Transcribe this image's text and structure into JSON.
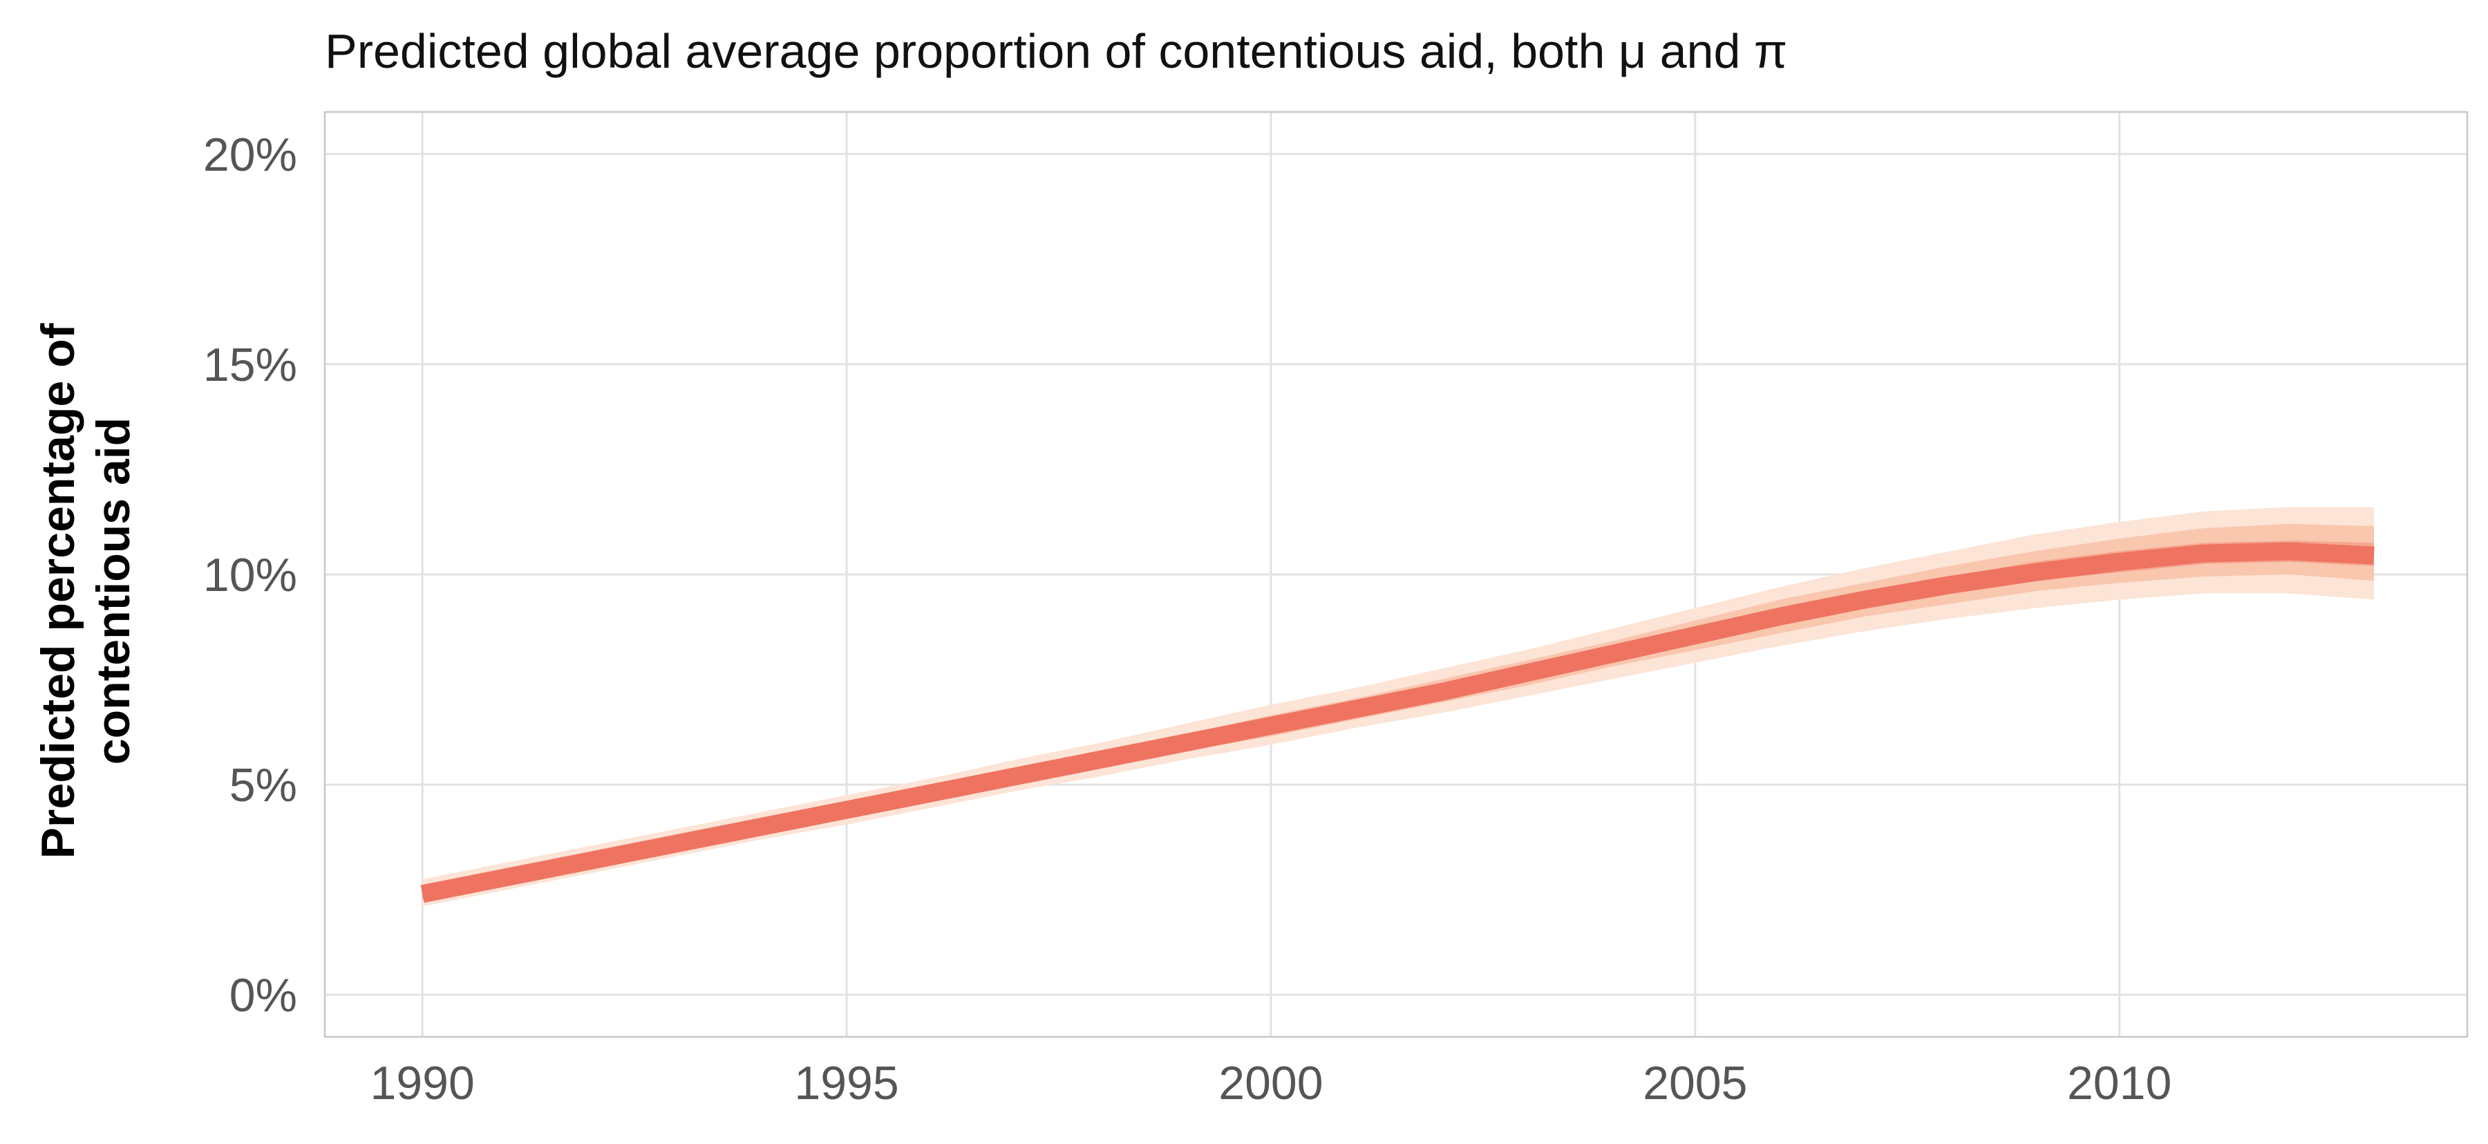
{
  "chart_data": {
    "type": "area",
    "title": "Predicted global average proportion of contentious aid, both μ and π",
    "xlabel": "",
    "ylabel_lines": [
      "Predicted percentage of",
      "contentious aid"
    ],
    "xlim": [
      1988.85,
      2014.1
    ],
    "ylim": [
      -1,
      21
    ],
    "x_ticks": [
      {
        "value": 1990,
        "label": "1990"
      },
      {
        "value": 1995,
        "label": "1995"
      },
      {
        "value": 2000,
        "label": "2000"
      },
      {
        "value": 2005,
        "label": "2005"
      },
      {
        "value": 2010,
        "label": "2010"
      }
    ],
    "y_ticks": [
      {
        "value": 0,
        "label": "0%"
      },
      {
        "value": 5,
        "label": "5%"
      },
      {
        "value": 10,
        "label": "10%"
      },
      {
        "value": 15,
        "label": "15%"
      },
      {
        "value": 20,
        "label": "20%"
      }
    ],
    "grid": true,
    "legend": "none",
    "colors": {
      "line": "#ef7361",
      "band_outer": "#fce4d6",
      "band_middle": "#f9c6ae",
      "band_inner": "#f5a68e",
      "grid": "#e2e2e2",
      "panel_border": "#c8c8c8"
    },
    "x": [
      1990,
      1991,
      1992,
      1993,
      1994,
      1995,
      1996,
      1997,
      1998,
      1999,
      2000,
      2001,
      2002,
      2003,
      2004,
      2005,
      2006,
      2007,
      2008,
      2009,
      2010,
      2011,
      2012,
      2013
    ],
    "median": [
      2.4,
      2.8,
      3.2,
      3.6,
      4.0,
      4.4,
      4.8,
      5.2,
      5.6,
      6.0,
      6.4,
      6.8,
      7.2,
      7.65,
      8.1,
      8.55,
      9.0,
      9.4,
      9.75,
      10.05,
      10.3,
      10.5,
      10.55,
      10.45
    ],
    "bands": [
      {
        "name": "outer",
        "lower": [
          2.1,
          2.5,
          2.9,
          3.3,
          3.7,
          4.05,
          4.45,
          4.85,
          5.2,
          5.6,
          5.95,
          6.35,
          6.7,
          7.1,
          7.5,
          7.9,
          8.3,
          8.65,
          8.95,
          9.2,
          9.4,
          9.55,
          9.55,
          9.4
        ],
        "upper": [
          2.75,
          3.15,
          3.55,
          3.95,
          4.35,
          4.75,
          5.15,
          5.6,
          6.0,
          6.45,
          6.9,
          7.3,
          7.75,
          8.2,
          8.7,
          9.2,
          9.7,
          10.15,
          10.55,
          10.95,
          11.25,
          11.5,
          11.6,
          11.6
        ]
      },
      {
        "name": "middle",
        "lower": [
          2.25,
          2.65,
          3.05,
          3.45,
          3.85,
          4.2,
          4.6,
          5.0,
          5.4,
          5.8,
          6.15,
          6.55,
          6.95,
          7.35,
          7.8,
          8.2,
          8.6,
          9.0,
          9.3,
          9.6,
          9.8,
          9.95,
          10.0,
          9.85
        ],
        "upper": [
          2.6,
          3.0,
          3.4,
          3.8,
          4.2,
          4.6,
          5.0,
          5.4,
          5.8,
          6.2,
          6.65,
          7.05,
          7.5,
          7.95,
          8.4,
          8.9,
          9.4,
          9.8,
          10.2,
          10.55,
          10.85,
          11.1,
          11.2,
          11.15
        ]
      },
      {
        "name": "inner",
        "lower": [
          2.3,
          2.7,
          3.1,
          3.5,
          3.9,
          4.3,
          4.7,
          5.1,
          5.5,
          5.9,
          6.3,
          6.7,
          7.1,
          7.5,
          7.95,
          8.4,
          8.8,
          9.2,
          9.55,
          9.85,
          10.05,
          10.25,
          10.3,
          10.2
        ],
        "upper": [
          2.5,
          2.9,
          3.3,
          3.7,
          4.1,
          4.5,
          4.9,
          5.3,
          5.7,
          6.1,
          6.5,
          6.9,
          7.3,
          7.8,
          8.25,
          8.7,
          9.15,
          9.6,
          9.95,
          10.3,
          10.55,
          10.75,
          10.8,
          10.75
        ]
      }
    ]
  }
}
